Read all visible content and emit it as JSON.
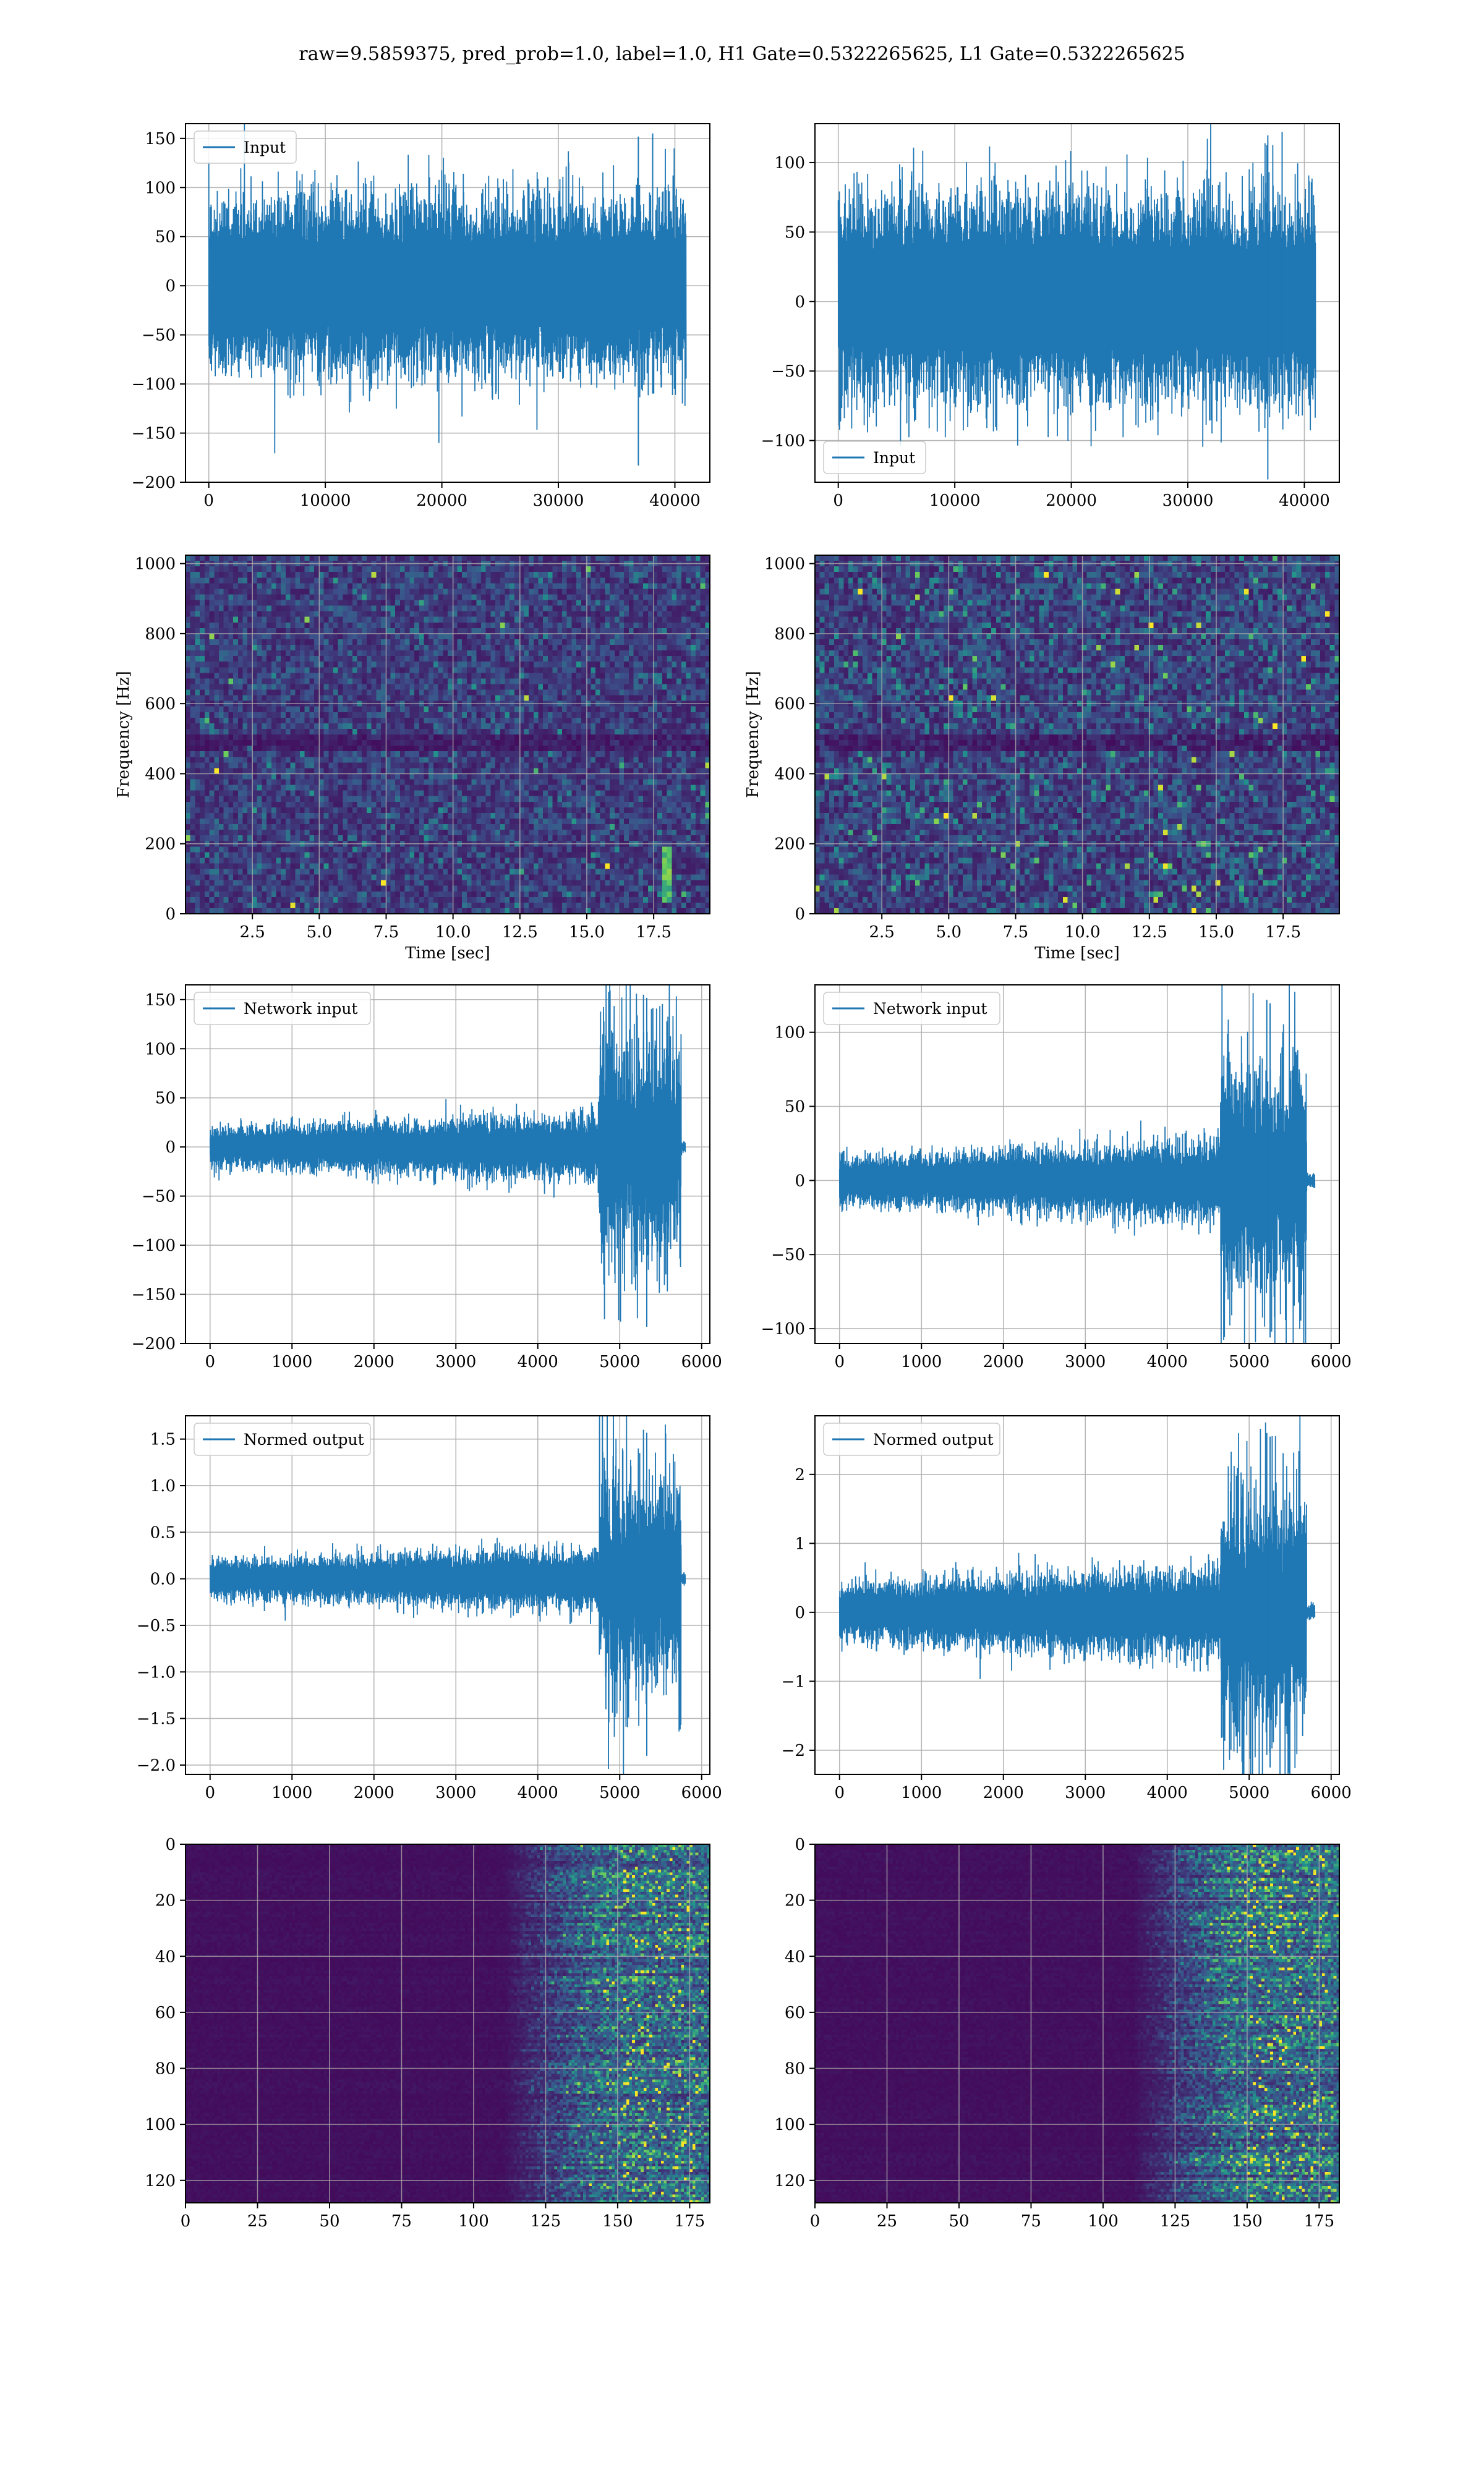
{
  "title": "raw=9.5859375, pred_prob=1.0, label=1.0, H1 Gate=0.5322265625, L1 Gate=0.5322265625",
  "colors": {
    "line": "#1f77b4",
    "grid": "#b0b0b0",
    "frame": "#000000",
    "viridis_low": "#440154",
    "viridis_high": "#fde725"
  },
  "chart_data": [
    {
      "type": "line",
      "row": 1,
      "col": 1,
      "legend": "upper-left",
      "series": [
        {
          "name": "Input",
          "envelope": {
            "x": [
              0,
              40960
            ],
            "typical": [
              -70,
              70
            ],
            "extreme_max": 155,
            "extreme_min": -183
          }
        }
      ],
      "xlim": [
        -2000,
        43000
      ],
      "ylim": [
        -200,
        165
      ],
      "xticks": [
        0,
        10000,
        20000,
        30000,
        40000
      ],
      "xtick_labels": [
        "0",
        "10000",
        "20000",
        "30000",
        "40000"
      ],
      "yticks": [
        150,
        100,
        50,
        0,
        -50,
        -100,
        -150,
        -200
      ],
      "ytick_labels": [
        "150",
        "100",
        "50",
        "0",
        "−50",
        "−100",
        "−150",
        "−200"
      ],
      "xlabel": "",
      "ylabel": "",
      "grid": true
    },
    {
      "type": "line",
      "row": 1,
      "col": 2,
      "legend": "lower-left",
      "series": [
        {
          "name": "Input",
          "envelope": {
            "x": [
              0,
              40960
            ],
            "typical": [
              -55,
              60
            ],
            "extreme_max": 122,
            "extreme_min": -128
          }
        }
      ],
      "xlim": [
        -2000,
        43000
      ],
      "ylim": [
        -130,
        128
      ],
      "xticks": [
        0,
        10000,
        20000,
        30000,
        40000
      ],
      "xtick_labels": [
        "0",
        "10000",
        "20000",
        "30000",
        "40000"
      ],
      "yticks": [
        100,
        50,
        0,
        -50,
        -100
      ],
      "ytick_labels": [
        "100",
        "50",
        "0",
        "−50",
        "−100"
      ],
      "xlabel": "",
      "ylabel": "",
      "grid": true
    },
    {
      "type": "heatmap",
      "row": 2,
      "col": 1,
      "colormap": "viridis",
      "xlim": [
        0,
        19.6
      ],
      "ylim": [
        0,
        1024
      ],
      "xticks": [
        2.5,
        5.0,
        7.5,
        10.0,
        12.5,
        15.0,
        17.5
      ],
      "xtick_labels": [
        "2.5",
        "5.0",
        "7.5",
        "10.0",
        "12.5",
        "15.0",
        "17.5"
      ],
      "yticks": [
        0,
        200,
        400,
        600,
        800,
        1000
      ],
      "ytick_labels": [
        "0",
        "200",
        "400",
        "600",
        "800",
        "1000"
      ],
      "xlabel": "Time [sec]",
      "ylabel": "Frequency [Hz]",
      "grid": true,
      "bright_feature": {
        "time": 18.0,
        "freq_range": [
          30,
          200
        ]
      }
    },
    {
      "type": "heatmap",
      "row": 2,
      "col": 2,
      "colormap": "viridis",
      "xlim": [
        0,
        19.6
      ],
      "ylim": [
        0,
        1024
      ],
      "xticks": [
        2.5,
        5.0,
        7.5,
        10.0,
        12.5,
        15.0,
        17.5
      ],
      "xtick_labels": [
        "2.5",
        "5.0",
        "7.5",
        "10.0",
        "12.5",
        "15.0",
        "17.5"
      ],
      "yticks": [
        0,
        200,
        400,
        600,
        800,
        1000
      ],
      "ytick_labels": [
        "0",
        "200",
        "400",
        "600",
        "800",
        "1000"
      ],
      "xlabel": "Time [sec]",
      "ylabel": "Frequency [Hz]",
      "grid": true
    },
    {
      "type": "line",
      "row": 3,
      "col": 1,
      "legend": "upper-left",
      "series": [
        {
          "name": "Network input",
          "envelope": {
            "x": [
              0,
              5800
            ],
            "quiet_amp": 15,
            "burst_start": 4750,
            "burst_end": 5750,
            "burst_amp": 70,
            "extreme_max": 155,
            "extreme_min": -183
          }
        }
      ],
      "xlim": [
        -300,
        6100
      ],
      "ylim": [
        -200,
        165
      ],
      "xticks": [
        0,
        1000,
        2000,
        3000,
        4000,
        5000,
        6000
      ],
      "xtick_labels": [
        "0",
        "1000",
        "2000",
        "3000",
        "4000",
        "5000",
        "6000"
      ],
      "yticks": [
        150,
        100,
        50,
        0,
        -50,
        -100,
        -150,
        -200
      ],
      "ytick_labels": [
        "150",
        "100",
        "50",
        "0",
        "−50",
        "−100",
        "−150",
        "−200"
      ],
      "xlabel": "",
      "ylabel": "",
      "grid": true
    },
    {
      "type": "line",
      "row": 3,
      "col": 2,
      "legend": "upper-left",
      "series": [
        {
          "name": "Network input",
          "envelope": {
            "x": [
              0,
              5800
            ],
            "quiet_amp": 12,
            "burst_start": 4650,
            "burst_end": 5700,
            "burst_amp": 50,
            "extreme_max": 122,
            "extreme_min": -106
          }
        }
      ],
      "xlim": [
        -300,
        6100
      ],
      "ylim": [
        -110,
        132
      ],
      "xticks": [
        0,
        1000,
        2000,
        3000,
        4000,
        5000,
        6000
      ],
      "xtick_labels": [
        "0",
        "1000",
        "2000",
        "3000",
        "4000",
        "5000",
        "6000"
      ],
      "yticks": [
        100,
        50,
        0,
        -50,
        -100
      ],
      "ytick_labels": [
        "100",
        "50",
        "0",
        "−50",
        "−100"
      ],
      "xlabel": "",
      "ylabel": "",
      "grid": true
    },
    {
      "type": "line",
      "row": 4,
      "col": 1,
      "legend": "upper-left",
      "series": [
        {
          "name": "Normed output",
          "envelope": {
            "x": [
              0,
              5800
            ],
            "quiet_amp": 0.15,
            "burst_start": 4750,
            "burst_end": 5750,
            "burst_amp": 0.7,
            "extreme_max": 1.6,
            "extreme_min": -1.9
          }
        }
      ],
      "xlim": [
        -300,
        6100
      ],
      "ylim": [
        -2.1,
        1.75
      ],
      "xticks": [
        0,
        1000,
        2000,
        3000,
        4000,
        5000,
        6000
      ],
      "xtick_labels": [
        "0",
        "1000",
        "2000",
        "3000",
        "4000",
        "5000",
        "6000"
      ],
      "yticks": [
        1.5,
        1.0,
        0.5,
        0.0,
        -0.5,
        -1.0,
        -1.5,
        -2.0
      ],
      "ytick_labels": [
        "1.5",
        "1.0",
        "0.5",
        "0.0",
        "−0.5",
        "−1.0",
        "−1.5",
        "−2.0"
      ],
      "xlabel": "",
      "ylabel": "",
      "grid": true
    },
    {
      "type": "line",
      "row": 4,
      "col": 2,
      "legend": "upper-left",
      "series": [
        {
          "name": "Normed output",
          "envelope": {
            "x": [
              0,
              5800
            ],
            "quiet_amp": 0.3,
            "burst_start": 4650,
            "burst_end": 5700,
            "burst_amp": 1.1,
            "extreme_max": 2.6,
            "extreme_min": -2.25
          }
        }
      ],
      "xlim": [
        -300,
        6100
      ],
      "ylim": [
        -2.35,
        2.85
      ],
      "xticks": [
        0,
        1000,
        2000,
        3000,
        4000,
        5000,
        6000
      ],
      "xtick_labels": [
        "0",
        "1000",
        "2000",
        "3000",
        "4000",
        "5000",
        "6000"
      ],
      "yticks": [
        2,
        1,
        0,
        -1,
        -2
      ],
      "ytick_labels": [
        "2",
        "1",
        "0",
        "−1",
        "−2"
      ],
      "xlabel": "",
      "ylabel": "",
      "grid": true
    },
    {
      "type": "heatmap",
      "row": 5,
      "col": 1,
      "colormap": "viridis",
      "xlim": [
        0,
        182
      ],
      "ylim": [
        128,
        0
      ],
      "xticks": [
        0,
        25,
        50,
        75,
        100,
        125,
        150,
        175
      ],
      "xtick_labels": [
        "0",
        "25",
        "50",
        "75",
        "100",
        "125",
        "150",
        "175"
      ],
      "yticks": [
        0,
        20,
        40,
        60,
        80,
        100,
        120
      ],
      "ytick_labels": [
        "0",
        "20",
        "40",
        "60",
        "80",
        "100",
        "120"
      ],
      "xlabel": "",
      "ylabel": "",
      "grid": true,
      "activity_onset_x": 125
    },
    {
      "type": "heatmap",
      "row": 5,
      "col": 2,
      "colormap": "viridis",
      "xlim": [
        0,
        182
      ],
      "ylim": [
        128,
        0
      ],
      "xticks": [
        0,
        25,
        50,
        75,
        100,
        125,
        150,
        175
      ],
      "xtick_labels": [
        "0",
        "25",
        "50",
        "75",
        "100",
        "125",
        "150",
        "175"
      ],
      "yticks": [
        0,
        20,
        40,
        60,
        80,
        100,
        120
      ],
      "ytick_labels": [
        "0",
        "20",
        "40",
        "60",
        "80",
        "100",
        "120"
      ],
      "xlabel": "",
      "ylabel": "",
      "grid": true,
      "activity_onset_x": 125
    }
  ]
}
